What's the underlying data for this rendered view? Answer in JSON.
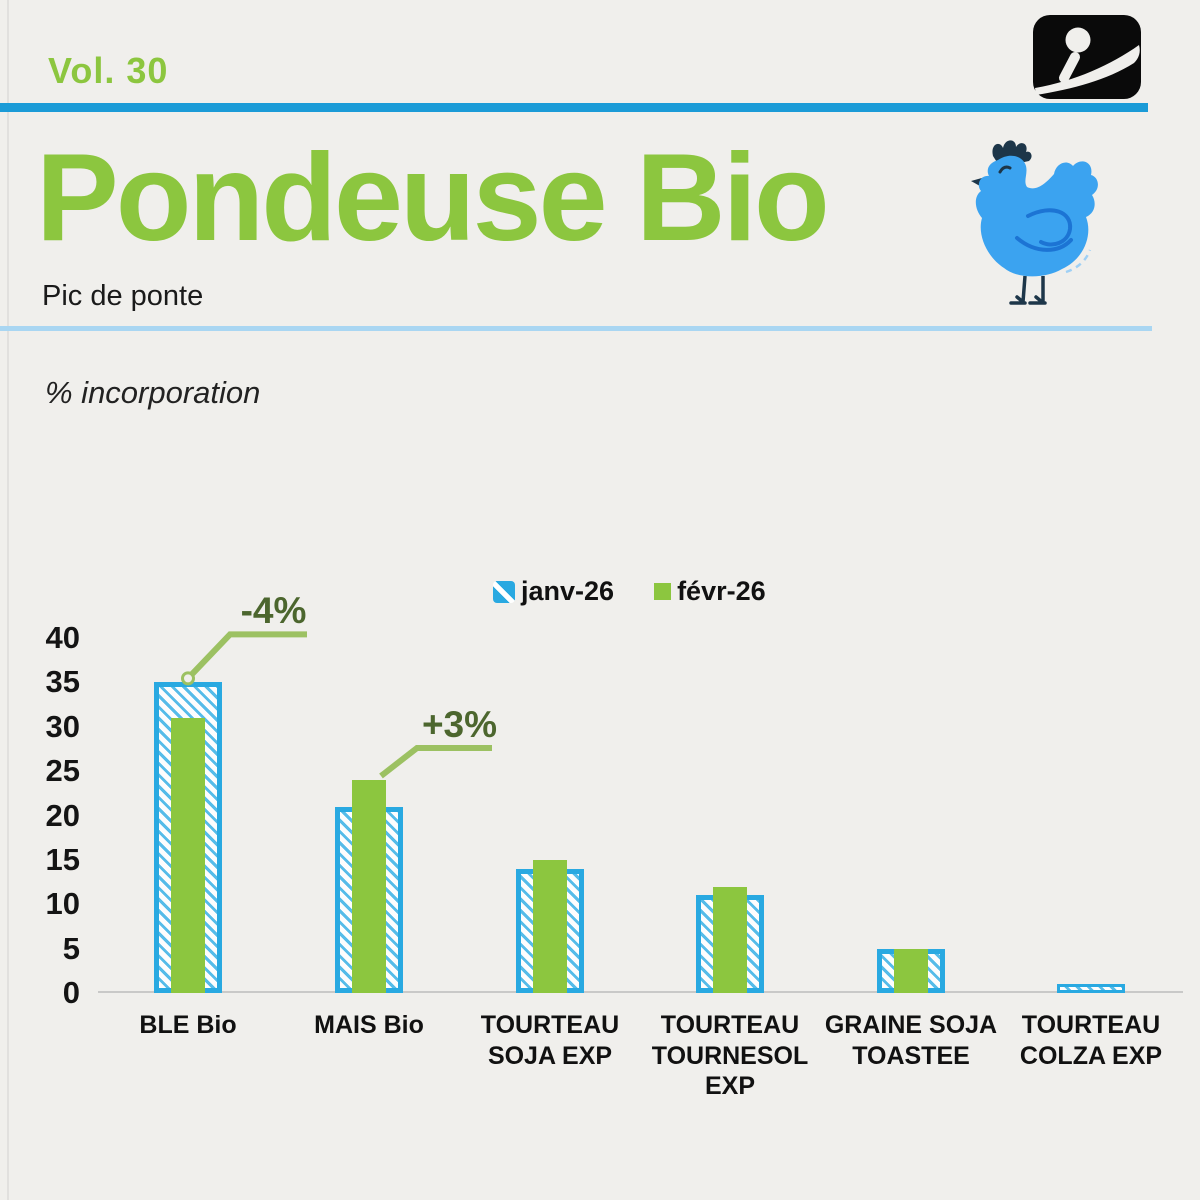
{
  "header": {
    "volume": "Vol. 30",
    "title": "Pondeuse Bio",
    "subtitle": "Pic de ponte"
  },
  "axis_note": "% incorporation",
  "icons": {
    "logo": "brand-i-swoosh-logo",
    "chicken": "blue-hen-illustration"
  },
  "colors": {
    "background": "#f0efec",
    "accent_green": "#8CC63F",
    "bar_blue": "#29A9E1",
    "bar_blue_hatch": "#56BCE9",
    "header_rule_blue": "#1B9BD7",
    "section_rule_light_blue": "#A9D6F2",
    "annotation_text_green": "#4C662E",
    "annotation_line_green": "#9CC162",
    "axis_line_gray": "#c9c9c8",
    "text_dark": "#141414",
    "logo_black": "#0a0a0a",
    "chicken_blue": "#3BA3F0",
    "chicken_dark": "#1D3649",
    "chicken_wing_blue": "#1C74D4"
  },
  "chart_data": {
    "type": "bar",
    "title": "",
    "categories": [
      "BLE Bio",
      "MAIS Bio",
      "TOURTEAU SOJA EXP",
      "TOURTEAU TOURNESOL EXP",
      "GRAINE SOJA TOASTEE",
      "TOURTEAU COLZA EXP"
    ],
    "category_label_lines": [
      [
        "BLE Bio"
      ],
      [
        "MAIS Bio"
      ],
      [
        "TOURTEAU",
        "SOJA EXP"
      ],
      [
        "TOURTEAU",
        "TOURNESOL",
        "EXP"
      ],
      [
        "GRAINE SOJA",
        "TOASTEE"
      ],
      [
        "TOURTEAU",
        "COLZA EXP"
      ]
    ],
    "series": [
      {
        "name": "janv-26",
        "style": "blue-hatched",
        "values": [
          35,
          21,
          14,
          11,
          5,
          1
        ]
      },
      {
        "name": "févr-26",
        "style": "green-solid",
        "values": [
          31,
          24,
          15,
          12,
          5,
          0
        ]
      }
    ],
    "ylabel": "% incorporation",
    "yticks": [
      0,
      5,
      10,
      15,
      20,
      25,
      30,
      35,
      40
    ],
    "ylim": [
      0,
      40
    ],
    "grid": false,
    "legend_position": "top-center",
    "annotations": [
      {
        "text": "-4%",
        "category": "BLE Bio",
        "series": "janv-26"
      },
      {
        "text": "+3%",
        "category": "MAIS Bio",
        "series": "févr-26"
      }
    ]
  }
}
